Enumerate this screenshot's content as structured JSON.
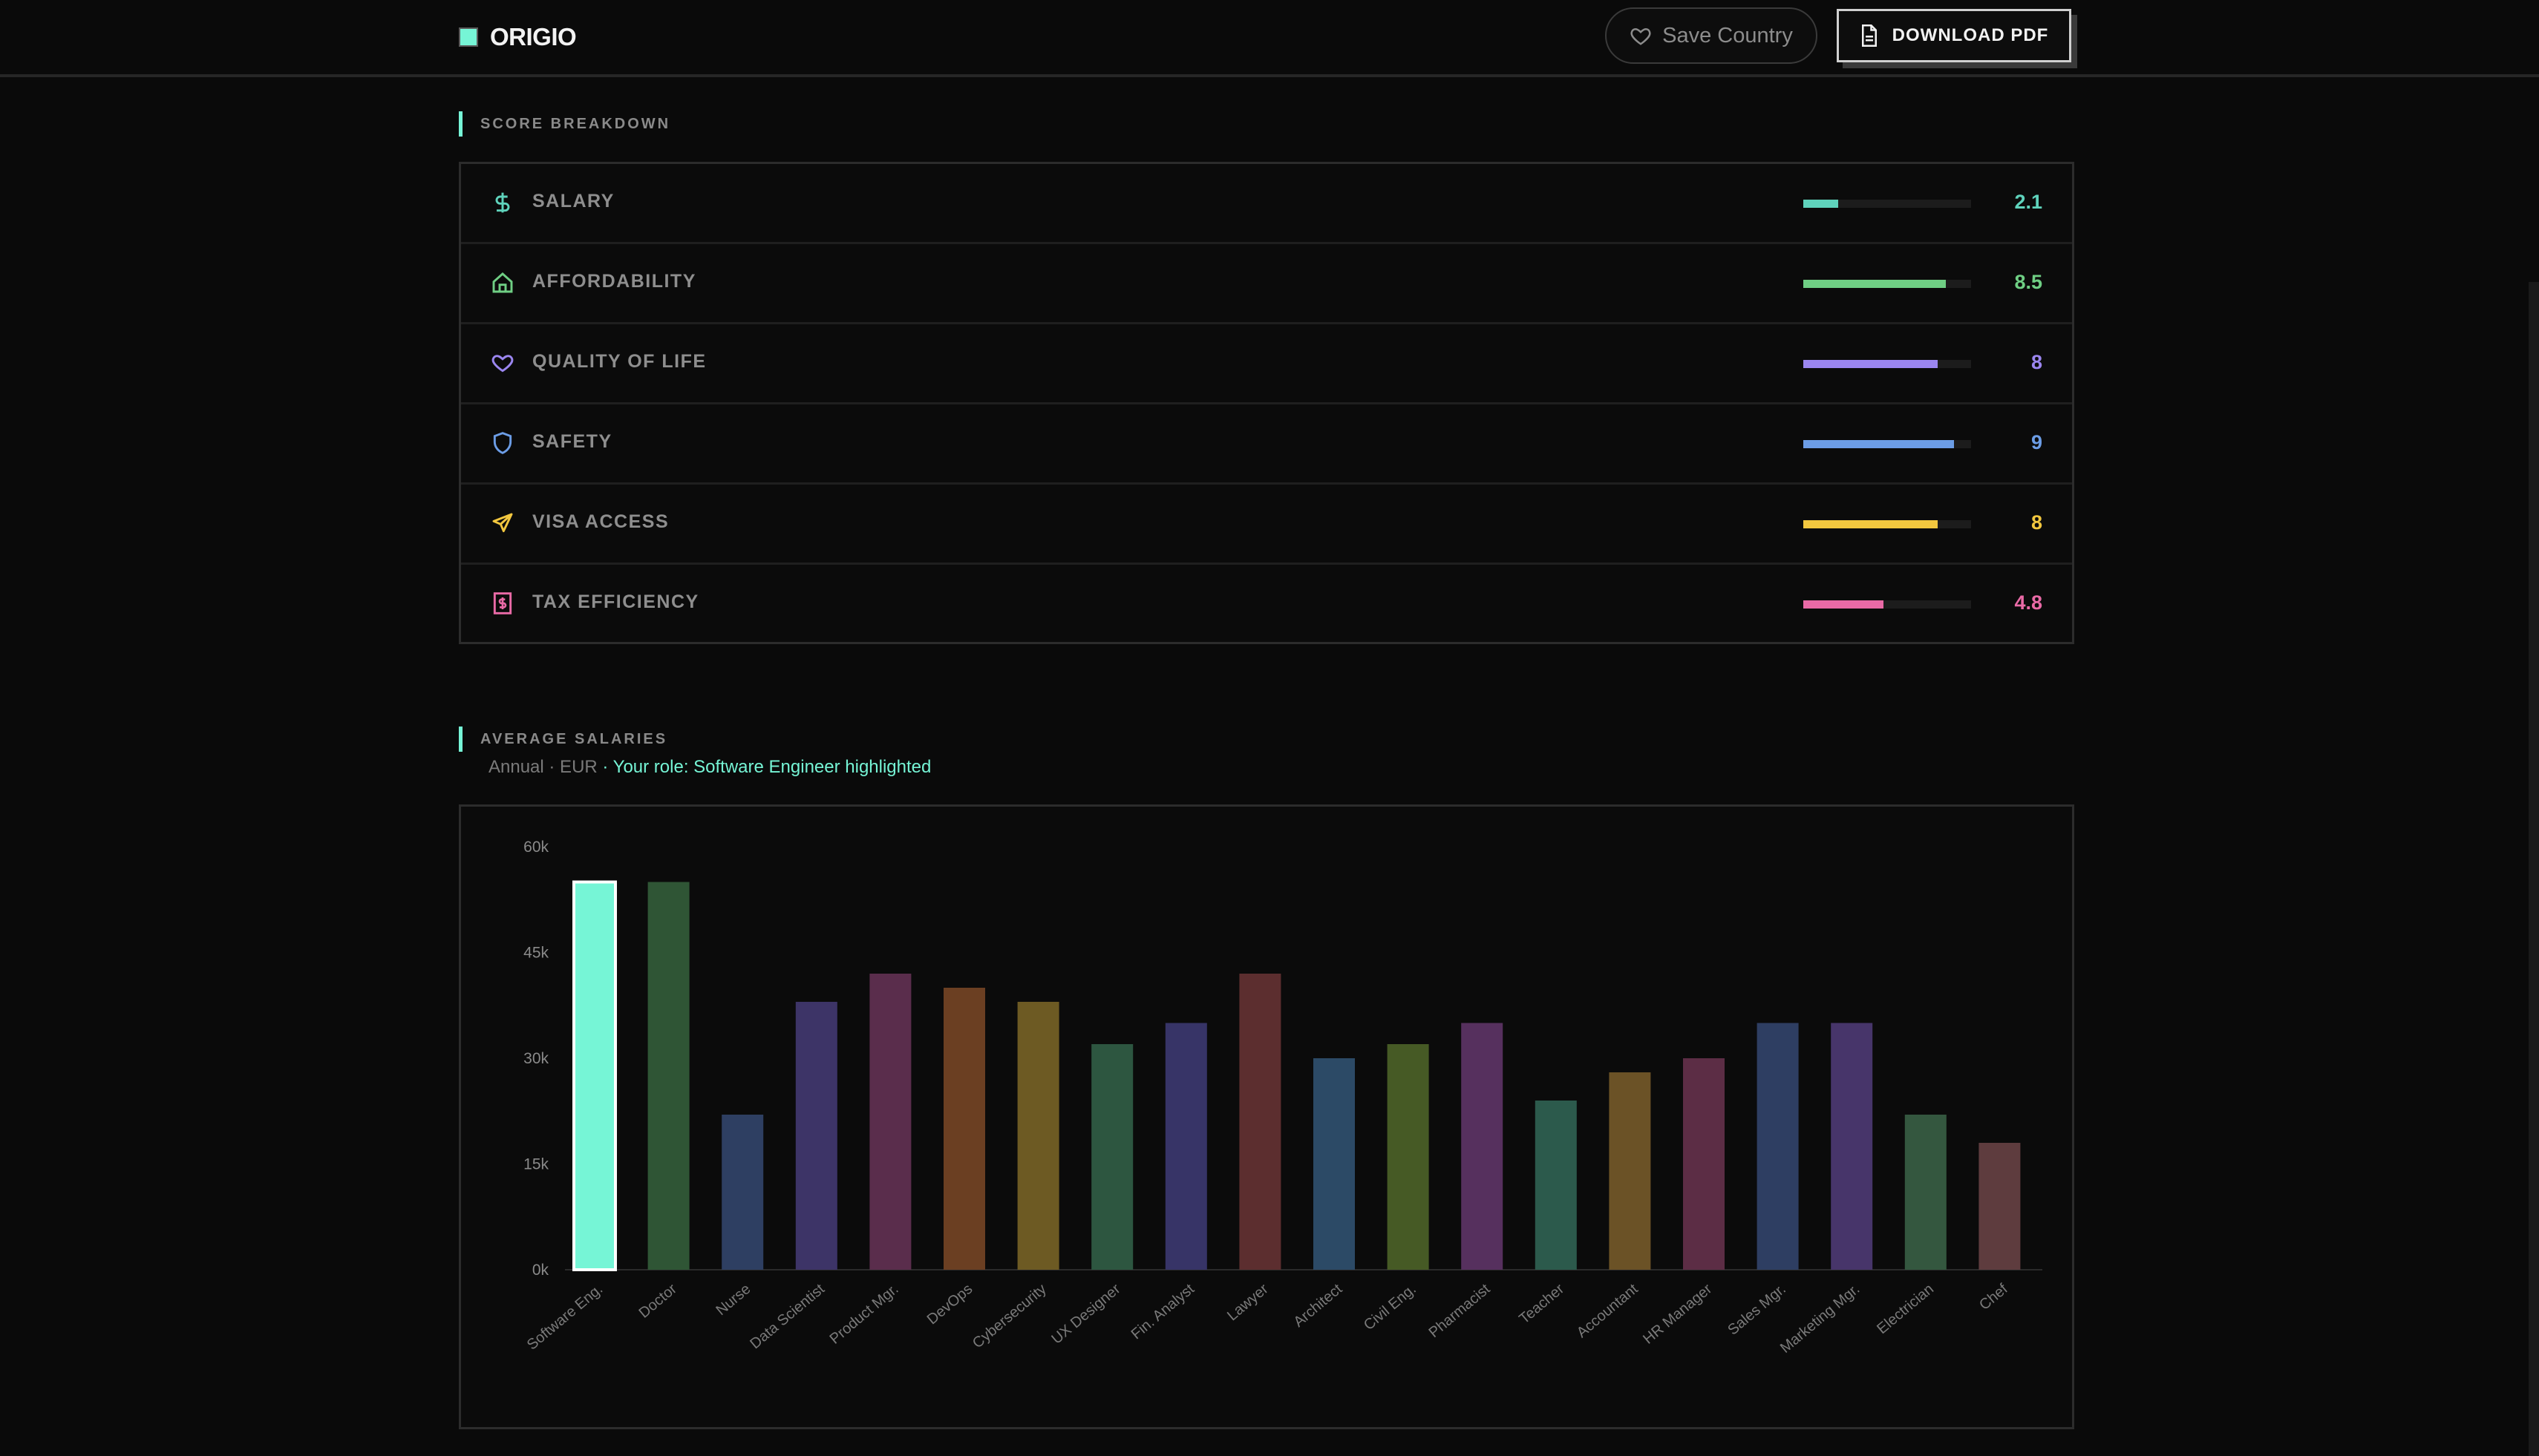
{
  "header": {
    "brand": "ORIGIO",
    "save_button": "Save Country",
    "download_button": "DOWNLOAD PDF"
  },
  "score_breakdown": {
    "title": "SCORE BREAKDOWN",
    "rows": [
      {
        "label": "SALARY",
        "value": "2.1",
        "score": 2.1,
        "color": "#5fd3bc",
        "icon": "dollar-icon"
      },
      {
        "label": "AFFORDABILITY",
        "value": "8.5",
        "score": 8.5,
        "color": "#6fcf84",
        "icon": "home-icon"
      },
      {
        "label": "QUALITY OF LIFE",
        "value": "8",
        "score": 8,
        "color": "#9b86f0",
        "icon": "heart-icon"
      },
      {
        "label": "SAFETY",
        "value": "9",
        "score": 9,
        "color": "#6c9de6",
        "icon": "shield-icon"
      },
      {
        "label": "VISA ACCESS",
        "value": "8",
        "score": 8,
        "color": "#f2c73f",
        "icon": "plane-icon"
      },
      {
        "label": "TAX EFFICIENCY",
        "value": "4.8",
        "score": 4.8,
        "color": "#e96aa6",
        "icon": "receipt-icon"
      }
    ],
    "max_score": 10
  },
  "salaries": {
    "title": "AVERAGE SALARIES",
    "subtitle_prefix": "Annual · EUR",
    "subtitle_highlight": "· Your role: Software Engineer highlighted"
  },
  "chart_data": {
    "type": "bar",
    "categories": [
      "Software Eng.",
      "Doctor",
      "Nurse",
      "Data Scientist",
      "Product Mgr.",
      "DevOps",
      "Cybersecurity",
      "UX Designer",
      "Fin. Analyst",
      "Lawyer",
      "Architect",
      "Civil Eng.",
      "Pharmacist",
      "Teacher",
      "Accountant",
      "HR Manager",
      "Sales Mgr.",
      "Marketing Mgr.",
      "Electrician",
      "Chef"
    ],
    "values": [
      55000,
      55000,
      22000,
      38000,
      42000,
      40000,
      38000,
      32000,
      35000,
      42000,
      30000,
      32000,
      35000,
      24000,
      28000,
      30000,
      35000,
      35000,
      22000,
      18000
    ],
    "colors": [
      "#76f5d6",
      "#2f5535",
      "#2e3f62",
      "#3d3467",
      "#5a2d4c",
      "#6b3f22",
      "#6d5a23",
      "#2d5640",
      "#373467",
      "#5c2e2f",
      "#2c4a66",
      "#465a25",
      "#56305e",
      "#2c5a4c",
      "#6b5226",
      "#5c2d45",
      "#2e3e62",
      "#47356a",
      "#34573f",
      "#5e3c3e"
    ],
    "highlighted": "Software Eng.",
    "y_ticks": [
      "0k",
      "15k",
      "30k",
      "45k",
      "60k"
    ],
    "ylim": [
      0,
      60000
    ]
  }
}
